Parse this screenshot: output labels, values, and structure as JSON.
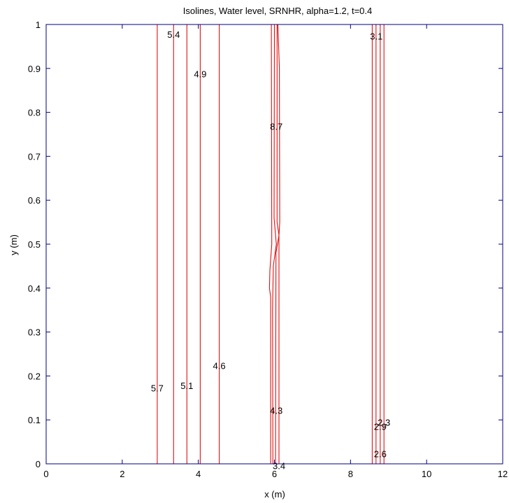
{
  "chart_data": {
    "type": "contour",
    "title": "Isolines, Water level, SRNHR, alpha=1.2, t=0.4",
    "xlabel": "x (m)",
    "ylabel": "y (m)",
    "xlim": [
      0,
      12
    ],
    "ylim": [
      0,
      1
    ],
    "xticks": [
      0,
      2,
      4,
      6,
      8,
      10,
      12
    ],
    "yticks": [
      0,
      0.1,
      0.2,
      0.3,
      0.4,
      0.5,
      0.6,
      0.7,
      0.8,
      0.9,
      1
    ],
    "xtick_labels": [
      "0",
      "2",
      "4",
      "6",
      "8",
      "10",
      "12"
    ],
    "ytick_labels": [
      "0",
      "0.1",
      "0.2",
      "0.3",
      "0.4",
      "0.5",
      "0.6",
      "0.7",
      "0.8",
      "0.9",
      "1"
    ],
    "line_color": "#e01010",
    "axis_color": "#000080",
    "isolines": [
      {
        "x": [
          [
            2.92,
            0
          ],
          [
            2.92,
            1
          ]
        ]
      },
      {
        "x": [
          [
            3.35,
            0
          ],
          [
            3.35,
            1
          ]
        ]
      },
      {
        "x": [
          [
            3.7,
            0
          ],
          [
            3.7,
            1
          ]
        ]
      },
      {
        "x": [
          [
            4.05,
            0
          ],
          [
            4.05,
            1
          ]
        ]
      },
      {
        "x": [
          [
            4.55,
            0
          ],
          [
            4.55,
            1
          ]
        ]
      },
      {
        "x": [
          [
            5.9,
            0
          ],
          [
            5.9,
            0.38
          ],
          [
            5.87,
            0.4
          ],
          [
            5.88,
            0.44
          ],
          [
            5.93,
            0.5
          ],
          [
            5.92,
            1
          ]
        ]
      },
      {
        "x": [
          [
            5.96,
            0
          ],
          [
            5.95,
            0.35
          ],
          [
            5.97,
            0.45
          ],
          [
            6.05,
            0.5
          ],
          [
            5.99,
            0.56
          ],
          [
            6.0,
            1
          ]
        ]
      },
      {
        "x": [
          [
            6.03,
            0
          ],
          [
            6.04,
            0.48
          ],
          [
            6.12,
            0.52
          ],
          [
            6.07,
            0.55
          ],
          [
            6.07,
            1
          ]
        ]
      },
      {
        "x": [
          [
            6.12,
            0
          ],
          [
            6.12,
            0.52
          ],
          [
            6.14,
            0.55
          ],
          [
            6.13,
            0.9
          ],
          [
            6.09,
            1
          ]
        ]
      },
      {
        "x": [
          [
            8.57,
            0
          ],
          [
            8.57,
            1
          ]
        ]
      },
      {
        "x": [
          [
            8.67,
            0
          ],
          [
            8.67,
            1
          ]
        ]
      },
      {
        "x": [
          [
            8.78,
            0
          ],
          [
            8.78,
            1
          ]
        ]
      },
      {
        "x": [
          [
            8.88,
            0
          ],
          [
            8.88,
            1
          ]
        ]
      }
    ],
    "contour_labels": [
      {
        "text": "5.4",
        "x": 3.35,
        "y": 0.978
      },
      {
        "text": "4.9",
        "x": 4.05,
        "y": 0.888
      },
      {
        "text": "8.7",
        "x": 6.05,
        "y": 0.768
      },
      {
        "text": "3.1",
        "x": 8.68,
        "y": 0.974
      },
      {
        "text": "4.6",
        "x": 4.55,
        "y": 0.224
      },
      {
        "text": "5.7",
        "x": 2.92,
        "y": 0.173
      },
      {
        "text": "5.1",
        "x": 3.7,
        "y": 0.178
      },
      {
        "text": "4.3",
        "x": 6.05,
        "y": 0.122
      },
      {
        "text": "2.9",
        "x": 8.78,
        "y": 0.085
      },
      {
        "text": "2.3",
        "x": 8.88,
        "y": 0.095
      },
      {
        "text": "2.6",
        "x": 8.78,
        "y": 0.023
      },
      {
        "text": "3.4",
        "x": 6.12,
        "y": -0.004
      }
    ]
  }
}
